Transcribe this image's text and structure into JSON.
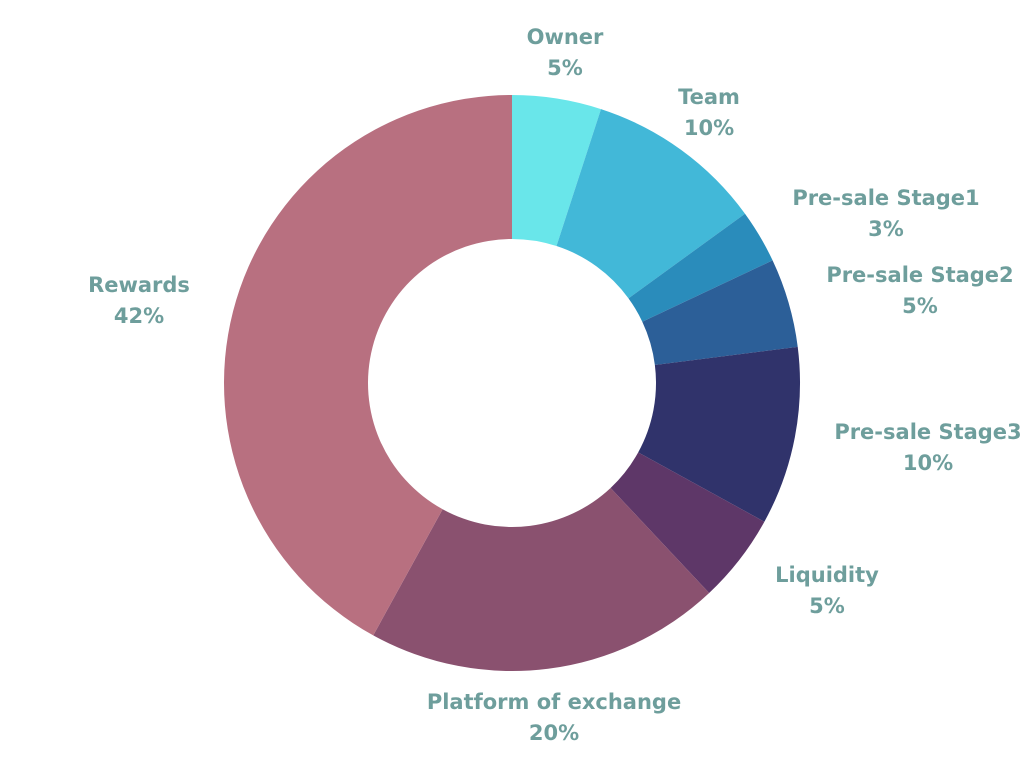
{
  "chart_data": {
    "type": "pie",
    "donut": true,
    "legend": "none",
    "slices": [
      {
        "label": "Owner",
        "value": 5,
        "value_label": "5%",
        "color": "#69e6ea"
      },
      {
        "label": "Team",
        "value": 10,
        "value_label": "10%",
        "color": "#42b8d8"
      },
      {
        "label": "Pre-sale Stage1",
        "value": 3,
        "value_label": "3%",
        "color": "#2a8cbb"
      },
      {
        "label": "Pre-sale Stage2",
        "value": 5,
        "value_label": "5%",
        "color": "#2c5f98"
      },
      {
        "label": "Pre-sale Stage3",
        "value": 10,
        "value_label": "10%",
        "color": "#30336b"
      },
      {
        "label": "Liquidity",
        "value": 5,
        "value_label": "5%",
        "color": "#5e3768"
      },
      {
        "label": "Platform of exchange",
        "value": 20,
        "value_label": "20%",
        "color": "#8a516f"
      },
      {
        "label": "Rewards",
        "value": 42,
        "value_label": "42%",
        "color": "#b87080"
      }
    ],
    "label_color": "#6e9e9c"
  }
}
